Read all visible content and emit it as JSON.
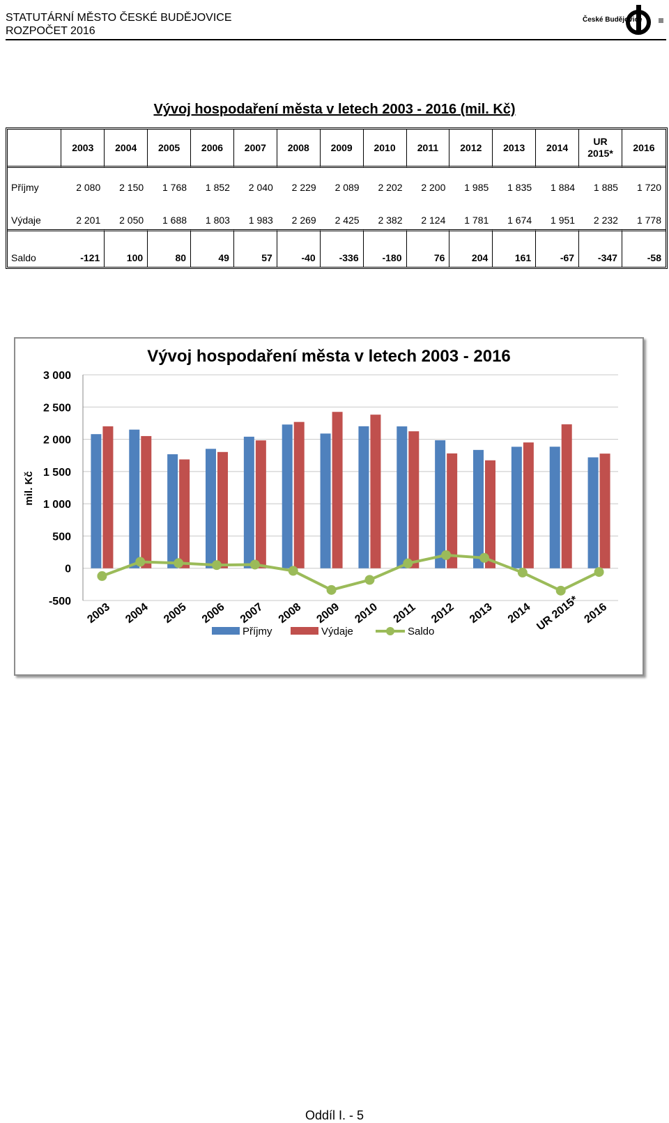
{
  "header": {
    "line1": "STATUTÁRNÍ MĚSTO ČESKÉ BUDĚJOVICE",
    "line2": "ROZPOČET 2016",
    "logo_text": "České Budějovice"
  },
  "title": "Vývoj hospodaření města v letech 2003 - 2016 (mil. Kč)",
  "table": {
    "years": [
      "2003",
      "2004",
      "2005",
      "2006",
      "2007",
      "2008",
      "2009",
      "2010",
      "2011",
      "2012",
      "2013",
      "2014",
      "UR 2015*",
      "2016"
    ],
    "year_ur_line1": "UR",
    "year_ur_line2": "2015*",
    "rows": [
      {
        "label": "Příjmy",
        "values": [
          "2 080",
          "2 150",
          "1 768",
          "1 852",
          "2 040",
          "2 229",
          "2 089",
          "2 202",
          "2 200",
          "1 985",
          "1 835",
          "1 884",
          "1 885",
          "1 720"
        ]
      },
      {
        "label": "Výdaje",
        "values": [
          "2 201",
          "2 050",
          "1 688",
          "1 803",
          "1 983",
          "2 269",
          "2 425",
          "2 382",
          "2 124",
          "1 781",
          "1 674",
          "1 951",
          "2 232",
          "1 778"
        ]
      },
      {
        "label": "Saldo",
        "values": [
          "-121",
          "100",
          "80",
          "49",
          "57",
          "-40",
          "-336",
          "-180",
          "76",
          "204",
          "161",
          "-67",
          "-347",
          "-58"
        ]
      }
    ]
  },
  "chart_data": {
    "type": "bar",
    "title": "Vývoj hospodaření města v letech 2003 - 2016",
    "ylabel": "mil. Kč",
    "xlabel": "",
    "categories": [
      "2003",
      "2004",
      "2005",
      "2006",
      "2007",
      "2008",
      "2009",
      "2010",
      "2011",
      "2012",
      "2013",
      "2014",
      "UR 2015*",
      "2016"
    ],
    "ylim": [
      -500,
      3000
    ],
    "yticks": [
      -500,
      0,
      500,
      1000,
      1500,
      2000,
      2500,
      3000
    ],
    "ytick_labels": [
      "-500",
      "0",
      "500",
      "1 000",
      "1 500",
      "2 000",
      "2 500",
      "3 000"
    ],
    "grid": true,
    "legend": "bottom",
    "series": [
      {
        "name": "Příjmy",
        "kind": "bar",
        "color": "#4f81bd",
        "values": [
          2080,
          2150,
          1768,
          1852,
          2040,
          2229,
          2089,
          2202,
          2200,
          1985,
          1835,
          1884,
          1885,
          1720
        ]
      },
      {
        "name": "Výdaje",
        "kind": "bar",
        "color": "#c0504d",
        "values": [
          2201,
          2050,
          1688,
          1803,
          1983,
          2269,
          2425,
          2382,
          2124,
          1781,
          1674,
          1951,
          2232,
          1778
        ]
      },
      {
        "name": "Saldo",
        "kind": "line",
        "color": "#9bbb59",
        "values": [
          -121,
          100,
          80,
          49,
          57,
          -40,
          -336,
          -180,
          76,
          204,
          161,
          -67,
          -347,
          -58
        ]
      }
    ]
  },
  "footer": "Oddíl I. - 5"
}
